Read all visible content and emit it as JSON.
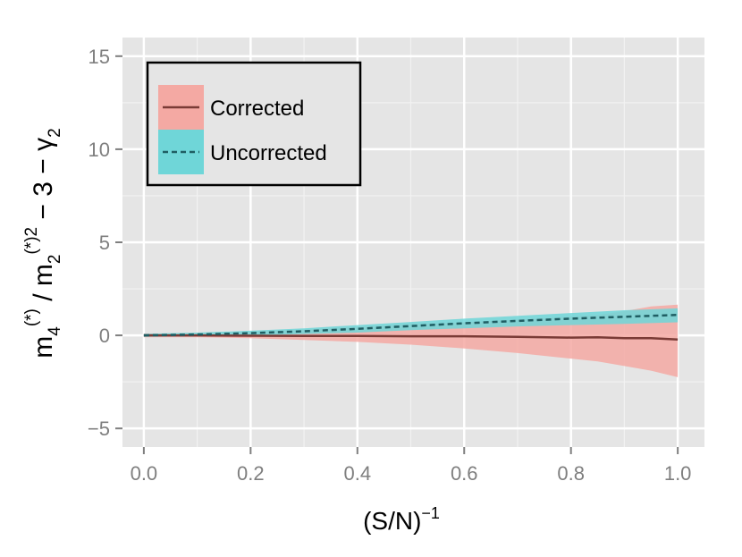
{
  "chart_data": {
    "type": "line",
    "title": "",
    "x_axis": {
      "label_base": "(S/N)",
      "label_sup": "−1",
      "range": [
        -0.04,
        1.05
      ],
      "ticks": [
        0.0,
        0.2,
        0.4,
        0.6,
        0.8,
        1.0
      ],
      "tick_labels": [
        "0.0",
        "0.2",
        "0.4",
        "0.6",
        "0.8",
        "1.0"
      ]
    },
    "y_axis": {
      "label_parts": {
        "m": "m",
        "sub1": "4",
        "sup1": "(*)",
        "slash": " / m",
        "sub2": "2",
        "sup2": "(*)2",
        "tail": "  − 3 − γ",
        "sub3": "2"
      },
      "range": [
        -6,
        16
      ],
      "ticks": [
        -5,
        0,
        5,
        10,
        15
      ],
      "tick_labels": [
        "−5",
        "0",
        "5",
        "10",
        "15"
      ]
    },
    "grid": true,
    "legend": {
      "position": "top-left",
      "entries": [
        "Corrected",
        "Uncorrected"
      ]
    },
    "series": [
      {
        "name": "Corrected",
        "line_color": "#7a3b36",
        "fill_color": "#f4a9a3",
        "dashed": false,
        "x": [
          0.0,
          0.1,
          0.2,
          0.3,
          0.4,
          0.5,
          0.6,
          0.7,
          0.8,
          0.85,
          0.9,
          0.95,
          1.0
        ],
        "y": [
          0.0,
          0.0,
          -0.02,
          -0.03,
          -0.03,
          -0.05,
          -0.05,
          -0.08,
          -0.12,
          -0.1,
          -0.15,
          -0.15,
          -0.22
        ],
        "lower": [
          -0.1,
          -0.1,
          -0.15,
          -0.25,
          -0.35,
          -0.5,
          -0.7,
          -0.95,
          -1.25,
          -1.4,
          -1.65,
          -1.9,
          -2.25
        ],
        "upper": [
          0.1,
          0.1,
          0.18,
          0.3,
          0.45,
          0.6,
          0.7,
          0.85,
          1.0,
          1.1,
          1.3,
          1.55,
          1.65
        ]
      },
      {
        "name": "Uncorrected",
        "line_color": "#1f5e63",
        "fill_color": "#6fd6d8",
        "dashed": true,
        "x": [
          0.0,
          0.1,
          0.2,
          0.3,
          0.4,
          0.5,
          0.6,
          0.7,
          0.8,
          0.9,
          1.0
        ],
        "y": [
          0.0,
          0.05,
          0.12,
          0.22,
          0.35,
          0.5,
          0.65,
          0.78,
          0.9,
          1.0,
          1.1
        ],
        "lower": [
          -0.08,
          -0.05,
          0.0,
          0.07,
          0.15,
          0.28,
          0.38,
          0.48,
          0.55,
          0.62,
          0.7
        ],
        "upper": [
          0.08,
          0.15,
          0.25,
          0.38,
          0.55,
          0.72,
          0.9,
          1.05,
          1.2,
          1.35,
          1.45
        ]
      }
    ]
  },
  "colors": {
    "panel_bg": "#e5e5e5",
    "grid_major": "#ffffff",
    "grid_minor": "#f2f2f2",
    "tick_text": "#7f7f7f"
  }
}
